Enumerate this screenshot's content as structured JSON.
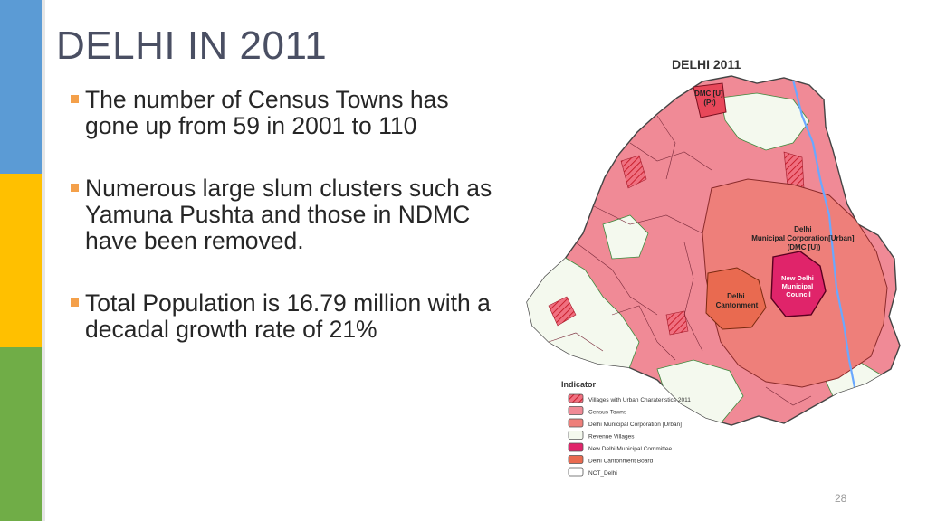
{
  "slide": {
    "title": "DELHI IN 2011",
    "page_number": "28",
    "bullets": [
      "The number of Census Towns has gone up from 59 in 2001 to 110",
      "Numerous large slum clusters such as Yamuna Pushta and those in NDMC  have been removed.",
      "Total Population is 16.79 million with a decadal growth rate of 21%"
    ],
    "colors": {
      "title": "#4a4f63",
      "bullet_marker": "#f4a04a",
      "bar_blue": "#5b9bd5",
      "bar_yellow": "#ffc000",
      "bar_green": "#70ad47"
    }
  },
  "map": {
    "title": "DELHI 2011",
    "labels": {
      "dmc_pt": "DMC [U]\n(Pt)",
      "dmc_urban": "Delhi\nMunicipal Corporation[Urban]\n(DMC [U])",
      "ndmc": "New Delhi\nMunicipal\nCouncil",
      "cantonment": "Delhi\nCantonment"
    },
    "legend_title": "Indicator",
    "legend": [
      {
        "label": "Villages with Urban Charateristics 2011",
        "color": "#e8485a",
        "hatch": true
      },
      {
        "label": "Census Towns",
        "color": "#f08a96",
        "hatch": false
      },
      {
        "label": "Delhi Municipal Corporation [Urban]",
        "color": "#ee7f7a",
        "hatch": false
      },
      {
        "label": "Revenue Villages",
        "color": "#f4f9ee",
        "hatch": false
      },
      {
        "label": "New Delhi Municipal Committee",
        "color": "#e0246a",
        "hatch": false
      },
      {
        "label": "Delhi Cantonment Board",
        "color": "#e96a50",
        "hatch": false
      },
      {
        "label": "NCT_Delhi",
        "color": "#ffffff",
        "hatch": false
      }
    ]
  }
}
